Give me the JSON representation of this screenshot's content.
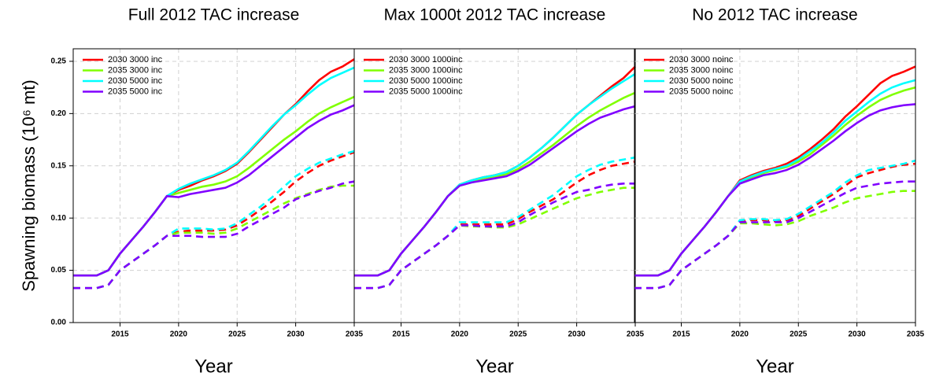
{
  "chart_data": [
    {
      "type": "line",
      "title": "Full 2012 TAC increase",
      "xlabel": "Year",
      "ylabel": "Spawning biomass (10⁶ mt)",
      "x": [
        2011,
        2012,
        2013,
        2014,
        2015,
        2016,
        2017,
        2018,
        2019,
        2020,
        2021,
        2022,
        2023,
        2024,
        2025,
        2026,
        2027,
        2028,
        2029,
        2030,
        2031,
        2032,
        2033,
        2034,
        2035
      ],
      "xlim": [
        2011,
        2035
      ],
      "xticks": [
        2015,
        2020,
        2025,
        2030,
        2035
      ],
      "ylim": [
        0,
        0.262
      ],
      "yticks": [
        {
          "value": 0,
          "label": "0.00"
        },
        0.05,
        {
          "value": 0.1,
          "label": "0.10"
        },
        0.15,
        {
          "value": 0.2,
          "label": "0.20"
        },
        0.25
      ],
      "grid": true,
      "legend": "upper left",
      "series": [
        {
          "name": "2030 3000 inc",
          "color": "#ff0000",
          "values": [
            0.045,
            0.045,
            0.045,
            0.05,
            0.066,
            0.079,
            0.092,
            0.106,
            0.121,
            0.127,
            0.131,
            0.136,
            0.14,
            0.145,
            0.152,
            0.163,
            0.175,
            0.187,
            0.199,
            0.209,
            0.221,
            0.232,
            0.24,
            0.245,
            0.252
          ]
        },
        {
          "name": "2035 3000 inc",
          "color": "#80ff00",
          "values": [
            0.045,
            0.045,
            0.045,
            0.05,
            0.066,
            0.079,
            0.092,
            0.106,
            0.121,
            0.124,
            0.127,
            0.13,
            0.132,
            0.135,
            0.14,
            0.148,
            0.157,
            0.166,
            0.175,
            0.183,
            0.192,
            0.2,
            0.206,
            0.211,
            0.216
          ]
        },
        {
          "name": "2030 5000 inc",
          "color": "#00ffff",
          "values": [
            0.045,
            0.045,
            0.045,
            0.05,
            0.066,
            0.079,
            0.092,
            0.106,
            0.121,
            0.128,
            0.133,
            0.137,
            0.141,
            0.146,
            0.153,
            0.164,
            0.176,
            0.188,
            0.199,
            0.208,
            0.218,
            0.227,
            0.234,
            0.239,
            0.244
          ]
        },
        {
          "name": "2035 5000 inc",
          "color": "#8000ff",
          "values": [
            0.045,
            0.045,
            0.045,
            0.05,
            0.066,
            0.079,
            0.092,
            0.106,
            0.121,
            0.12,
            0.123,
            0.125,
            0.127,
            0.129,
            0.134,
            0.141,
            0.15,
            0.159,
            0.168,
            0.177,
            0.186,
            0.193,
            0.199,
            0.203,
            0.208
          ]
        },
        {
          "color": "#ff0000",
          "dash": true,
          "values": [
            0.033,
            0.033,
            0.033,
            0.036,
            0.05,
            0.058,
            0.066,
            0.074,
            0.083,
            0.087,
            0.088,
            0.088,
            0.088,
            0.089,
            0.093,
            0.1,
            0.108,
            0.116,
            0.125,
            0.135,
            0.143,
            0.15,
            0.155,
            0.159,
            0.163
          ]
        },
        {
          "color": "#80ff00",
          "dash": true,
          "values": [
            0.033,
            0.033,
            0.033,
            0.036,
            0.05,
            0.058,
            0.066,
            0.074,
            0.083,
            0.086,
            0.086,
            0.086,
            0.085,
            0.086,
            0.09,
            0.096,
            0.102,
            0.108,
            0.114,
            0.119,
            0.123,
            0.127,
            0.13,
            0.131,
            0.131
          ]
        },
        {
          "color": "#00ffff",
          "dash": true,
          "values": [
            0.033,
            0.033,
            0.033,
            0.036,
            0.05,
            0.058,
            0.066,
            0.074,
            0.083,
            0.09,
            0.09,
            0.09,
            0.089,
            0.09,
            0.095,
            0.103,
            0.111,
            0.12,
            0.13,
            0.14,
            0.147,
            0.153,
            0.157,
            0.161,
            0.164
          ]
        },
        {
          "color": "#8000ff",
          "dash": true,
          "values": [
            0.033,
            0.033,
            0.033,
            0.036,
            0.05,
            0.058,
            0.066,
            0.074,
            0.083,
            0.083,
            0.083,
            0.082,
            0.082,
            0.082,
            0.085,
            0.092,
            0.098,
            0.104,
            0.11,
            0.118,
            0.122,
            0.126,
            0.129,
            0.133,
            0.135
          ]
        }
      ]
    },
    {
      "type": "line",
      "title": "Max 1000t 2012 TAC increase",
      "xlabel": "Year",
      "x": [
        2011,
        2012,
        2013,
        2014,
        2015,
        2016,
        2017,
        2018,
        2019,
        2020,
        2021,
        2022,
        2023,
        2024,
        2025,
        2026,
        2027,
        2028,
        2029,
        2030,
        2031,
        2032,
        2033,
        2034,
        2035
      ],
      "xlim": [
        2011,
        2035
      ],
      "xticks": [
        2015,
        2020,
        2025,
        2030,
        2035
      ],
      "ylim": [
        0,
        0.262
      ],
      "grid": true,
      "legend": "upper left",
      "series": [
        {
          "name": "2030 3000 1000inc",
          "color": "#ff0000",
          "values": [
            0.045,
            0.045,
            0.045,
            0.05,
            0.066,
            0.079,
            0.092,
            0.106,
            0.121,
            0.132,
            0.136,
            0.139,
            0.141,
            0.144,
            0.15,
            0.158,
            0.167,
            0.177,
            0.188,
            0.199,
            0.208,
            0.217,
            0.226,
            0.234,
            0.245
          ]
        },
        {
          "name": "2035 3000 1000inc",
          "color": "#80ff00",
          "values": [
            0.045,
            0.045,
            0.045,
            0.05,
            0.066,
            0.079,
            0.092,
            0.106,
            0.121,
            0.131,
            0.134,
            0.137,
            0.139,
            0.142,
            0.147,
            0.154,
            0.162,
            0.17,
            0.179,
            0.188,
            0.196,
            0.203,
            0.209,
            0.215,
            0.22
          ]
        },
        {
          "name": "2030 5000 1000inc",
          "color": "#00ffff",
          "values": [
            0.045,
            0.045,
            0.045,
            0.05,
            0.066,
            0.079,
            0.092,
            0.106,
            0.121,
            0.132,
            0.136,
            0.139,
            0.141,
            0.144,
            0.15,
            0.158,
            0.167,
            0.177,
            0.188,
            0.199,
            0.208,
            0.216,
            0.224,
            0.231,
            0.238
          ]
        },
        {
          "name": "2035 5000 1000inc",
          "color": "#8000ff",
          "values": [
            0.045,
            0.045,
            0.045,
            0.05,
            0.066,
            0.079,
            0.092,
            0.106,
            0.121,
            0.131,
            0.134,
            0.136,
            0.138,
            0.14,
            0.145,
            0.151,
            0.159,
            0.167,
            0.175,
            0.183,
            0.19,
            0.196,
            0.2,
            0.204,
            0.207
          ]
        },
        {
          "color": "#ff0000",
          "dash": true,
          "values": [
            0.033,
            0.033,
            0.033,
            0.036,
            0.05,
            0.058,
            0.066,
            0.074,
            0.083,
            0.094,
            0.094,
            0.094,
            0.094,
            0.094,
            0.099,
            0.106,
            0.112,
            0.118,
            0.126,
            0.134,
            0.141,
            0.146,
            0.15,
            0.152,
            0.154
          ]
        },
        {
          "color": "#80ff00",
          "dash": true,
          "values": [
            0.033,
            0.033,
            0.033,
            0.036,
            0.05,
            0.058,
            0.066,
            0.074,
            0.083,
            0.093,
            0.092,
            0.092,
            0.091,
            0.091,
            0.094,
            0.099,
            0.104,
            0.109,
            0.114,
            0.119,
            0.122,
            0.125,
            0.127,
            0.129,
            0.129
          ]
        },
        {
          "color": "#00ffff",
          "dash": true,
          "values": [
            0.033,
            0.033,
            0.033,
            0.036,
            0.05,
            0.058,
            0.066,
            0.074,
            0.083,
            0.096,
            0.096,
            0.096,
            0.096,
            0.096,
            0.101,
            0.108,
            0.115,
            0.122,
            0.131,
            0.14,
            0.146,
            0.151,
            0.154,
            0.156,
            0.158
          ]
        },
        {
          "color": "#8000ff",
          "dash": true,
          "values": [
            0.033,
            0.033,
            0.033,
            0.036,
            0.05,
            0.058,
            0.066,
            0.074,
            0.083,
            0.093,
            0.093,
            0.092,
            0.092,
            0.092,
            0.096,
            0.103,
            0.109,
            0.115,
            0.12,
            0.125,
            0.127,
            0.13,
            0.132,
            0.133,
            0.133
          ]
        }
      ]
    },
    {
      "type": "line",
      "title": "No 2012 TAC increase",
      "xlabel": "Year",
      "x": [
        2011,
        2012,
        2013,
        2014,
        2015,
        2016,
        2017,
        2018,
        2019,
        2020,
        2021,
        2022,
        2023,
        2024,
        2025,
        2026,
        2027,
        2028,
        2029,
        2030,
        2031,
        2032,
        2033,
        2034,
        2035
      ],
      "xlim": [
        2011,
        2035
      ],
      "xticks": [
        2015,
        2020,
        2025,
        2030,
        2035
      ],
      "ylim": [
        0,
        0.262
      ],
      "grid": true,
      "legend": "upper left",
      "series": [
        {
          "name": "2030 3000 noinc",
          "color": "#ff0000",
          "values": [
            0.045,
            0.045,
            0.045,
            0.05,
            0.066,
            0.079,
            0.092,
            0.106,
            0.121,
            0.136,
            0.141,
            0.145,
            0.148,
            0.152,
            0.158,
            0.166,
            0.175,
            0.185,
            0.197,
            0.207,
            0.218,
            0.229,
            0.236,
            0.24,
            0.245
          ]
        },
        {
          "name": "2035 3000 noinc",
          "color": "#80ff00",
          "values": [
            0.045,
            0.045,
            0.045,
            0.05,
            0.066,
            0.079,
            0.092,
            0.106,
            0.121,
            0.134,
            0.139,
            0.143,
            0.146,
            0.149,
            0.154,
            0.161,
            0.17,
            0.179,
            0.189,
            0.198,
            0.206,
            0.213,
            0.218,
            0.222,
            0.225
          ]
        },
        {
          "name": "2030 5000 noinc",
          "color": "#00ffff",
          "values": [
            0.045,
            0.045,
            0.045,
            0.05,
            0.066,
            0.079,
            0.092,
            0.106,
            0.121,
            0.135,
            0.14,
            0.144,
            0.147,
            0.15,
            0.156,
            0.164,
            0.172,
            0.182,
            0.193,
            0.202,
            0.211,
            0.219,
            0.225,
            0.229,
            0.232
          ]
        },
        {
          "name": "2035 5000 noinc",
          "color": "#8000ff",
          "values": [
            0.045,
            0.045,
            0.045,
            0.05,
            0.066,
            0.079,
            0.092,
            0.106,
            0.121,
            0.133,
            0.137,
            0.141,
            0.143,
            0.146,
            0.151,
            0.158,
            0.166,
            0.174,
            0.183,
            0.191,
            0.198,
            0.203,
            0.206,
            0.208,
            0.209
          ]
        },
        {
          "color": "#ff0000",
          "dash": true,
          "values": [
            0.033,
            0.033,
            0.033,
            0.036,
            0.05,
            0.058,
            0.066,
            0.074,
            0.083,
            0.097,
            0.098,
            0.098,
            0.097,
            0.098,
            0.102,
            0.109,
            0.116,
            0.123,
            0.131,
            0.139,
            0.143,
            0.146,
            0.149,
            0.151,
            0.152
          ]
        },
        {
          "color": "#80ff00",
          "dash": true,
          "values": [
            0.033,
            0.033,
            0.033,
            0.036,
            0.05,
            0.058,
            0.066,
            0.074,
            0.083,
            0.095,
            0.095,
            0.094,
            0.093,
            0.094,
            0.097,
            0.102,
            0.106,
            0.11,
            0.115,
            0.119,
            0.121,
            0.123,
            0.125,
            0.126,
            0.126
          ]
        },
        {
          "color": "#00ffff",
          "dash": true,
          "values": [
            0.033,
            0.033,
            0.033,
            0.036,
            0.05,
            0.058,
            0.066,
            0.074,
            0.083,
            0.098,
            0.099,
            0.099,
            0.098,
            0.099,
            0.104,
            0.111,
            0.118,
            0.125,
            0.134,
            0.141,
            0.146,
            0.148,
            0.15,
            0.152,
            0.155
          ]
        },
        {
          "color": "#8000ff",
          "dash": true,
          "values": [
            0.033,
            0.033,
            0.033,
            0.036,
            0.05,
            0.058,
            0.066,
            0.074,
            0.083,
            0.096,
            0.096,
            0.096,
            0.096,
            0.096,
            0.1,
            0.106,
            0.112,
            0.118,
            0.124,
            0.129,
            0.131,
            0.133,
            0.134,
            0.135,
            0.135
          ]
        }
      ]
    }
  ]
}
